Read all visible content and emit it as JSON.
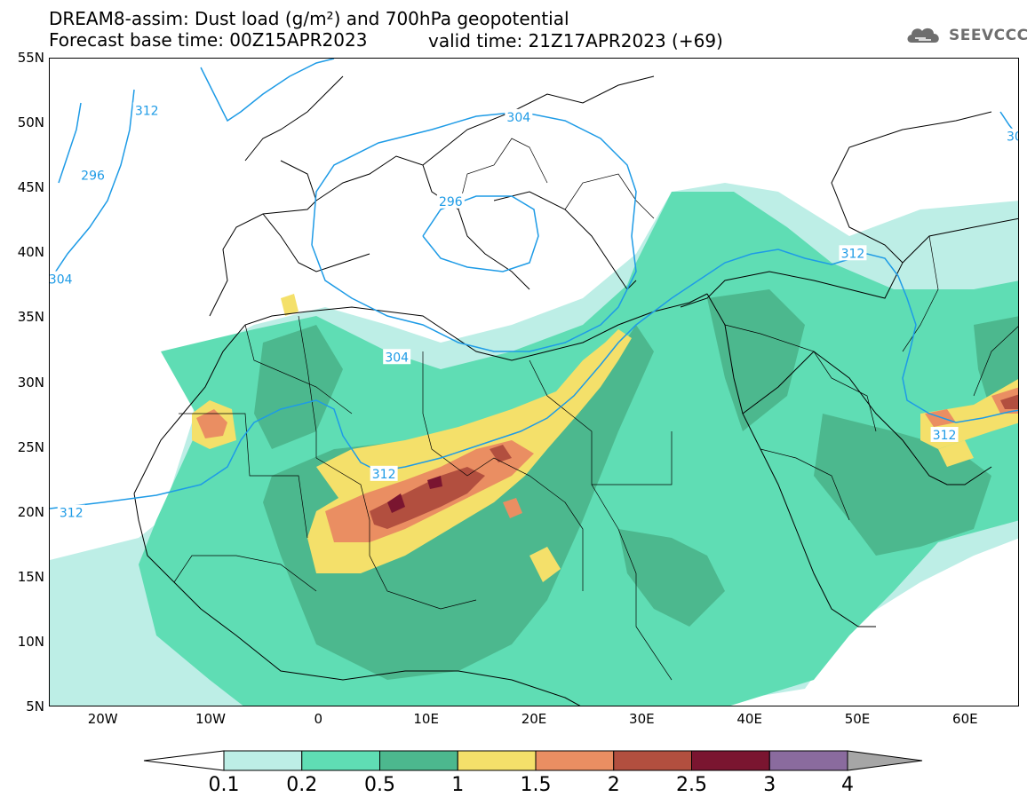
{
  "header": {
    "line1": "DREAM8-assim: Dust load (g/m²) and 700hPa geopotential",
    "line2": "Forecast base time: 00Z15APR2023",
    "valid_time": "valid time: 21Z17APR2023 (+69)"
  },
  "logo": {
    "text": "SEEVCCC",
    "icon": "cloud-icon",
    "color": "#6e6e6e"
  },
  "map": {
    "lat_labels": [
      "55N",
      "50N",
      "45N",
      "40N",
      "35N",
      "30N",
      "25N",
      "20N",
      "15N",
      "10N",
      "5N"
    ],
    "lon_labels": [
      "20W",
      "10W",
      "0",
      "10E",
      "20E",
      "30E",
      "40E",
      "50E",
      "60E"
    ],
    "lat_values": [
      55,
      50,
      45,
      40,
      35,
      30,
      25,
      20,
      15,
      10,
      5
    ],
    "lon_values": [
      -20,
      -10,
      0,
      10,
      20,
      30,
      40,
      50,
      60
    ],
    "extent": {
      "lon_min": -25,
      "lon_max": 65,
      "lat_min": 5,
      "lat_max": 55
    },
    "contour_color": "#1e9be6",
    "contour_labels": [
      {
        "text": "312",
        "lon": -16,
        "lat": 51
      },
      {
        "text": "304",
        "lon": 18.5,
        "lat": 50.5
      },
      {
        "text": "296",
        "lon": -21,
        "lat": 46
      },
      {
        "text": "304",
        "lon": -24,
        "lat": 38
      },
      {
        "text": "296",
        "lon": 12.2,
        "lat": 44
      },
      {
        "text": "312",
        "lon": 49.5,
        "lat": 40
      },
      {
        "text": "30",
        "lon": 64.5,
        "lat": 49
      },
      {
        "text": "304",
        "lon": 7.2,
        "lat": 32
      },
      {
        "text": "312",
        "lon": 6,
        "lat": 23
      },
      {
        "text": "312",
        "lon": -23,
        "lat": 20
      },
      {
        "text": "312",
        "lon": 58,
        "lat": 26
      }
    ]
  },
  "colorbar": {
    "labels": [
      "0.1",
      "0.2",
      "0.5",
      "1",
      "1.5",
      "2",
      "2.5",
      "3",
      "4"
    ],
    "colors": [
      "#bdeee6",
      "#5fddb4",
      "#4cb88e",
      "#f4e06a",
      "#ea8e62",
      "#b24f3f",
      "#7a1530",
      "#8a6b9e"
    ],
    "under_color": "#ffffff",
    "over_color": "#a6a6a6"
  }
}
